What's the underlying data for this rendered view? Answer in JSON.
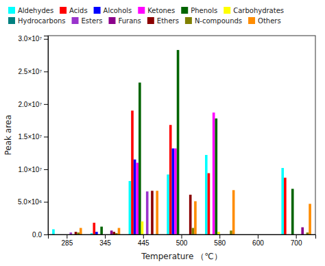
{
  "chart_data": {
    "type": "bar",
    "categories": [
      "285",
      "345",
      "445",
      "500",
      "580",
      "600",
      "700"
    ],
    "series": [
      {
        "name": "Aldehydes",
        "color": "#00FFFF",
        "values": [
          800000,
          200000,
          8200000,
          9200000,
          12200000,
          0,
          10200000
        ]
      },
      {
        "name": "Acids",
        "color": "#FF0000",
        "values": [
          0,
          1800000,
          19000000,
          16800000,
          9400000,
          0,
          8700000
        ]
      },
      {
        "name": "Alcohols",
        "color": "#0000FF",
        "values": [
          0,
          400000,
          11500000,
          13200000,
          0,
          0,
          0
        ]
      },
      {
        "name": "Ketones",
        "color": "#FF00FF",
        "values": [
          0,
          0,
          11000000,
          13200000,
          18700000,
          0,
          0
        ]
      },
      {
        "name": "Phenols",
        "color": "#006400",
        "values": [
          0,
          1200000,
          23300000,
          28300000,
          17800000,
          0,
          7000000
        ]
      },
      {
        "name": "Carbohydrates",
        "color": "#FFFF00",
        "values": [
          0,
          0,
          2000000,
          0,
          400000,
          0,
          0
        ]
      },
      {
        "name": "Hydrocarbons",
        "color": "#008080",
        "values": [
          0,
          0,
          0,
          0,
          0,
          0,
          0
        ]
      },
      {
        "name": "Esters",
        "color": "#9933CC",
        "values": [
          300000,
          0,
          6600000,
          0,
          0,
          0,
          0
        ]
      },
      {
        "name": "Furans",
        "color": "#8B008B",
        "values": [
          0,
          600000,
          0,
          0,
          0,
          0,
          1100000
        ]
      },
      {
        "name": "Ethers",
        "color": "#8B0000",
        "values": [
          400000,
          400000,
          6700000,
          6100000,
          0,
          0,
          0
        ]
      },
      {
        "name": "N-compounds",
        "color": "#808000",
        "values": [
          300000,
          200000,
          0,
          1000000,
          600000,
          0,
          300000
        ]
      },
      {
        "name": "Others",
        "color": "#FF8C00",
        "values": [
          1000000,
          1000000,
          6700000,
          5100000,
          6800000,
          0,
          4700000
        ]
      }
    ],
    "xlabel": "Temperature （℃）",
    "ylabel": "Peak area",
    "ylim": [
      0,
      30500000
    ],
    "yticks": [
      {
        "value": 0,
        "label": "0.0"
      },
      {
        "value": 5000000,
        "label": "5.0×10⁶"
      },
      {
        "value": 10000000,
        "label": "1.0×10⁷"
      },
      {
        "value": 15000000,
        "label": "1.5×10⁷"
      },
      {
        "value": 20000000,
        "label": "2.0×10⁷"
      },
      {
        "value": 25000000,
        "label": "2.5×10⁷"
      },
      {
        "value": 30000000,
        "label": "3.0×10⁷"
      }
    ],
    "legend": "top",
    "grid": false
  }
}
